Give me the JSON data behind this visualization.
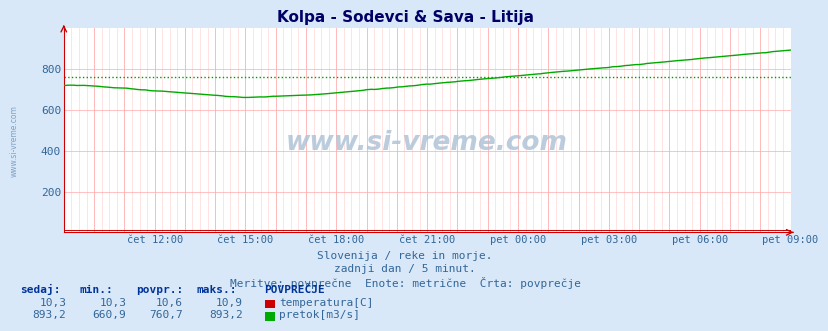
{
  "title": "Kolpa - Sodevci & Sava - Litija",
  "bg_color": "#d8e8f8",
  "plot_bg_color": "#ffffff",
  "xlabel_color": "#336699",
  "title_color": "#000066",
  "watermark": "www.si-vreme.com",
  "side_watermark": "www.si-vreme.com",
  "subtitle1": "Slovenija / reke in morje.",
  "subtitle2": "zadnji dan / 5 minut.",
  "subtitle3": "Meritve: povprečne  Enote: metrične  Črta: povprečje",
  "x_ticks_labels": [
    "čet 12:00",
    "čet 15:00",
    "čet 18:00",
    "čet 21:00",
    "pet 00:00",
    "pet 03:00",
    "pet 06:00",
    "pet 09:00"
  ],
  "ylim": [
    0,
    1000
  ],
  "y_ticks": [
    200,
    400,
    600,
    800
  ],
  "avg_line_value": 760.7,
  "avg_line_color": "#009900",
  "pretok_color": "#00aa00",
  "temp_color": "#cc0000",
  "table_headers": [
    "sedaj:",
    "min.:",
    "povpr.:",
    "maks.:"
  ],
  "table_temp": [
    "10,3",
    "10,3",
    "10,6",
    "10,9"
  ],
  "table_pretok": [
    "893,2",
    "660,9",
    "760,7",
    "893,2"
  ],
  "legend_title": "POVPREČJE",
  "legend_temp": "temperatura[C]",
  "legend_pretok": "pretok[m3/s]"
}
